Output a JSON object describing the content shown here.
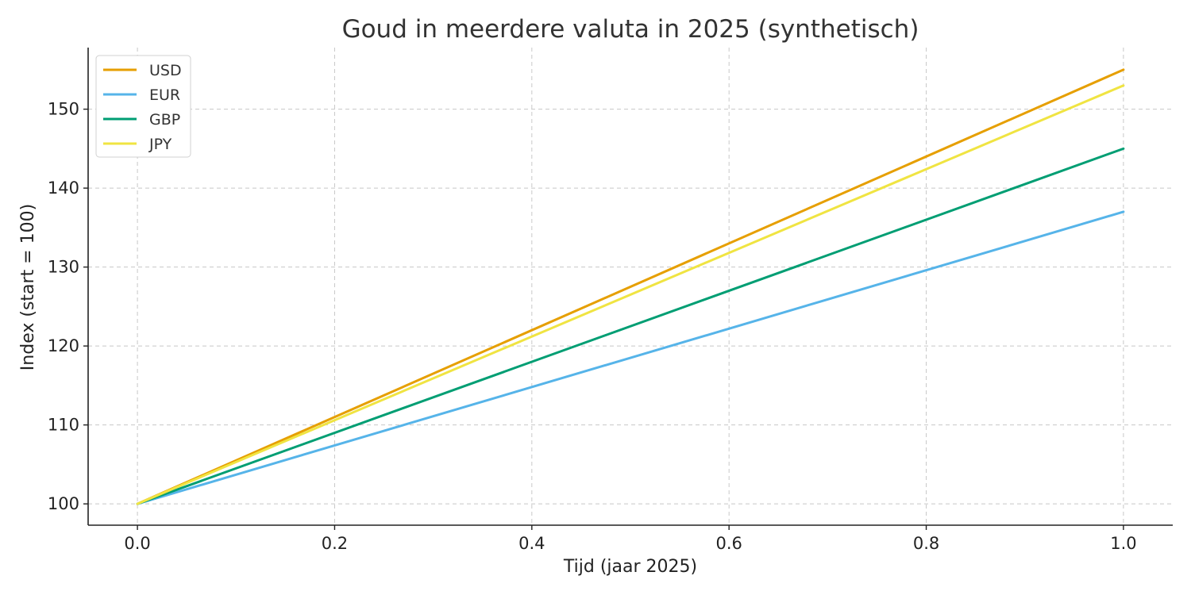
{
  "chart_data": {
    "type": "line",
    "title": "Goud in meerdere valuta in 2025 (synthetisch)",
    "xlabel": "Tijd (jaar 2025)",
    "ylabel": "Index (start = 100)",
    "x": [
      0.0,
      1.0
    ],
    "xlim": [
      -0.05,
      1.05
    ],
    "ylim": [
      97.3,
      157.8
    ],
    "xticks": [
      0.0,
      0.2,
      0.4,
      0.6,
      0.8,
      1.0
    ],
    "xtick_labels": [
      "0.0",
      "0.2",
      "0.4",
      "0.6",
      "0.8",
      "1.0"
    ],
    "yticks": [
      100,
      110,
      120,
      130,
      140,
      150
    ],
    "ytick_labels": [
      "100",
      "110",
      "120",
      "130",
      "140",
      "150"
    ],
    "grid": true,
    "legend_position": "top-left",
    "series": [
      {
        "name": "USD",
        "color": "#E69F00",
        "values": [
          100,
          155
        ]
      },
      {
        "name": "EUR",
        "color": "#56B4E9",
        "values": [
          100,
          137
        ]
      },
      {
        "name": "GBP",
        "color": "#009E73",
        "values": [
          100,
          145
        ]
      },
      {
        "name": "JPY",
        "color": "#F0E442",
        "values": [
          100,
          153
        ]
      }
    ]
  }
}
